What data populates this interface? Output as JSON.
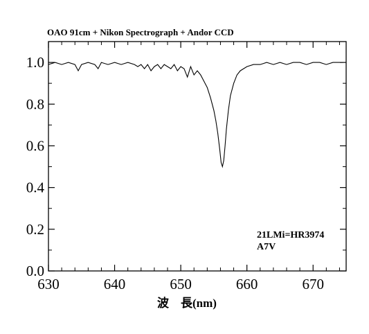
{
  "chart_data": {
    "type": "line",
    "title": "OAO 91cm + Nikon Spectrograph + Andor CCD",
    "xlabel": "波　長(nm)",
    "ylabel": "",
    "xlim": [
      630,
      675
    ],
    "ylim": [
      0.0,
      1.1
    ],
    "xticks": [
      "630",
      "640",
      "650",
      "660",
      "670"
    ],
    "yticks": [
      "0.0",
      "0.2",
      "0.4",
      "0.6",
      "0.8",
      "1.0"
    ],
    "xtick_values": [
      630,
      640,
      650,
      660,
      670
    ],
    "ytick_values": [
      0.0,
      0.2,
      0.4,
      0.6,
      0.8,
      1.0
    ],
    "grid": false,
    "annotations": [
      "21LMi=HR3974",
      "A7V"
    ],
    "series": [
      {
        "x": [
          630.0,
          631.0,
          632.0,
          633.0,
          634.0,
          634.5,
          635.0,
          636.0,
          637.0,
          637.5,
          638.0,
          639.0,
          640.0,
          641.0,
          642.0,
          643.0,
          643.5,
          644.0,
          644.5,
          645.0,
          645.5,
          646.0,
          646.5,
          647.0,
          647.5,
          648.0,
          648.5,
          649.0,
          649.5,
          650.0,
          650.5,
          651.0,
          651.5,
          652.0,
          652.5,
          653.0,
          653.5,
          654.0,
          654.5,
          655.0,
          655.3,
          655.6,
          655.9,
          656.1,
          656.3,
          656.5,
          656.7,
          656.9,
          657.2,
          657.5,
          658.0,
          658.5,
          659.0,
          659.5,
          660.0,
          661.0,
          662.0,
          663.0,
          664.0,
          665.0,
          666.0,
          667.0,
          668.0,
          669.0,
          670.0,
          671.0,
          672.0,
          673.0,
          674.0,
          674.5
        ],
        "y": [
          0.99,
          1.0,
          0.99,
          1.0,
          0.99,
          0.96,
          0.99,
          1.0,
          0.99,
          0.97,
          1.0,
          0.99,
          1.0,
          0.99,
          1.0,
          0.99,
          0.98,
          0.99,
          0.97,
          0.99,
          0.96,
          0.98,
          0.99,
          0.97,
          0.99,
          0.98,
          0.97,
          0.99,
          0.96,
          0.98,
          0.97,
          0.93,
          0.98,
          0.94,
          0.96,
          0.94,
          0.91,
          0.88,
          0.83,
          0.77,
          0.72,
          0.66,
          0.58,
          0.52,
          0.5,
          0.53,
          0.6,
          0.68,
          0.77,
          0.84,
          0.9,
          0.94,
          0.96,
          0.97,
          0.98,
          0.99,
          0.99,
          1.0,
          0.99,
          1.0,
          0.99,
          1.0,
          1.0,
          0.99,
          1.0,
          1.0,
          0.99,
          1.0,
          1.0,
          1.0
        ]
      }
    ]
  }
}
